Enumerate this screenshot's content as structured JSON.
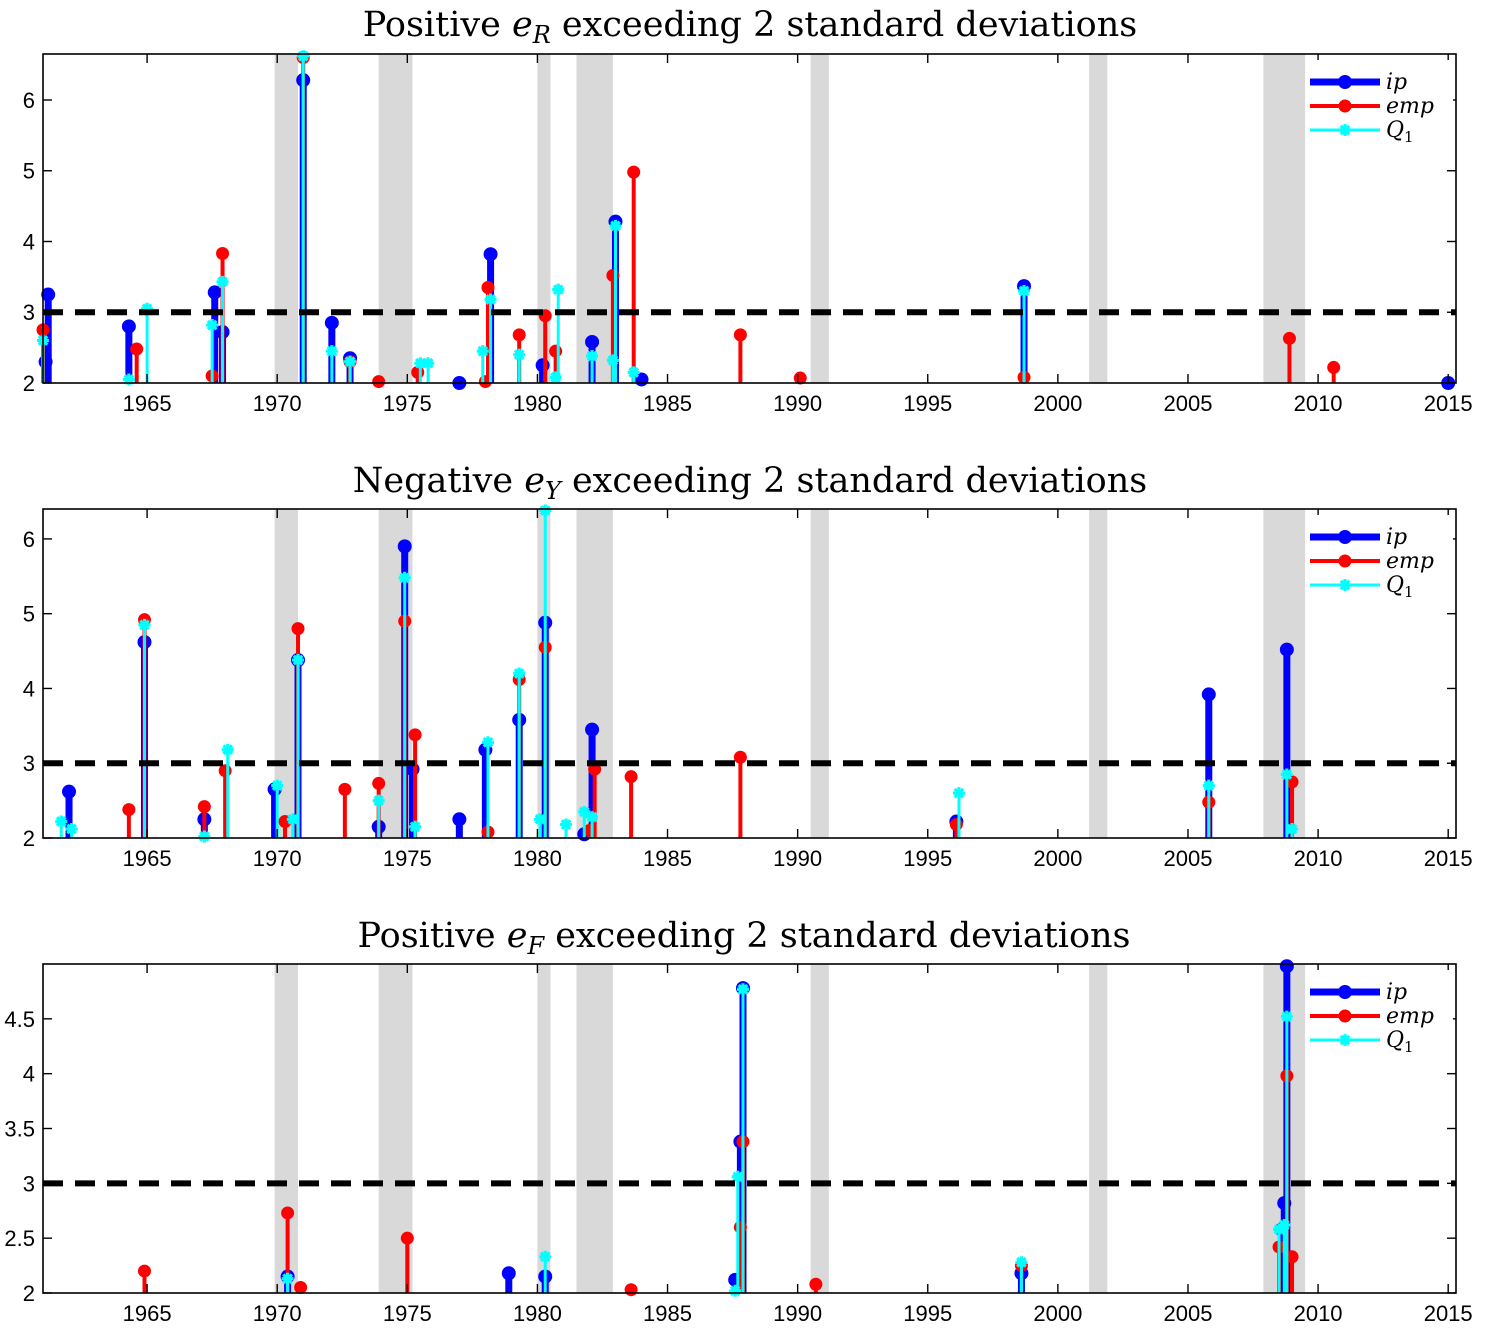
{
  "chart_data": [
    {
      "type": "stem",
      "title": "Positive e_R exceeding 2 standard deviations",
      "title_parts": {
        "prefix": "Positive ",
        "var": "e",
        "sub": "R",
        "suffix": " exceeding 2 standard deviations"
      },
      "xlim": [
        1961,
        2015.3
      ],
      "ylim": [
        2,
        6.65
      ],
      "xticks": [
        1965,
        1970,
        1975,
        1980,
        1985,
        1990,
        1995,
        2000,
        2005,
        2010,
        2015
      ],
      "xtick_labels": [
        "1965",
        "1970",
        "1975",
        "1980",
        "1985",
        "1990",
        "1995",
        "2000",
        "2005",
        "2010",
        "2015"
      ],
      "yticks": [
        2,
        3,
        4,
        5,
        6
      ],
      "ytick_labels": [
        "2",
        "3",
        "4",
        "5",
        "6"
      ],
      "threshold": 3,
      "grid": false,
      "legend_position": "top-right",
      "recession_bands": [
        [
          1969.9,
          1970.8
        ],
        [
          1973.9,
          1975.2
        ],
        [
          1980.0,
          1980.5
        ],
        [
          1981.5,
          1982.9
        ],
        [
          1990.5,
          1991.2
        ],
        [
          2001.2,
          2001.9
        ],
        [
          2007.9,
          2009.5
        ]
      ],
      "series": [
        {
          "name": "ip",
          "color": "#0000ff",
          "marker": "circle",
          "x": [
            1961.1,
            1961.2,
            1964.3,
            1967.6,
            1967.9,
            1971.0,
            1972.1,
            1972.8,
            1977.0,
            1978.2,
            1980.2,
            1982.1,
            1983.0,
            1984.0,
            1998.7,
            2015.0
          ],
          "y": [
            2.3,
            3.25,
            2.8,
            3.28,
            2.72,
            6.28,
            2.85,
            2.35,
            2.0,
            3.82,
            2.25,
            2.58,
            4.28,
            2.05,
            3.37,
            2.0
          ]
        },
        {
          "name": "emp",
          "color": "#ff0000",
          "marker": "circle",
          "x": [
            1961.0,
            1964.6,
            1967.5,
            1967.9,
            1971.0,
            1972.8,
            1973.9,
            1975.4,
            1978.0,
            1978.1,
            1979.3,
            1980.3,
            1980.7,
            1982.9,
            1983.7,
            1987.8,
            1990.1,
            1998.7,
            2008.9,
            2010.6
          ],
          "y": [
            2.75,
            2.48,
            2.1,
            3.83,
            6.6,
            2.3,
            2.02,
            2.15,
            2.02,
            3.35,
            2.68,
            2.95,
            2.45,
            3.52,
            4.98,
            2.68,
            2.07,
            2.08,
            2.63,
            2.22
          ]
        },
        {
          "name": "Q_1",
          "color": "#00ffff",
          "marker": "star",
          "x": [
            1961.0,
            1964.3,
            1965.0,
            1967.5,
            1967.9,
            1971.0,
            1972.1,
            1972.8,
            1975.5,
            1975.8,
            1977.9,
            1978.2,
            1979.3,
            1980.7,
            1980.8,
            1982.1,
            1982.9,
            1983.0,
            1983.7,
            1998.7
          ],
          "y": [
            2.6,
            2.05,
            3.05,
            2.82,
            3.43,
            6.62,
            2.45,
            2.3,
            2.28,
            2.28,
            2.45,
            3.18,
            2.4,
            2.08,
            3.32,
            2.38,
            2.32,
            4.22,
            2.15,
            3.3
          ]
        }
      ]
    },
    {
      "type": "stem",
      "title": "Negative e_Y exceeding 2 standard deviations",
      "title_parts": {
        "prefix": "Negative ",
        "var": "e",
        "sub": "Y",
        "suffix": " exceeding 2 standard deviations"
      },
      "xlim": [
        1961,
        2015.3
      ],
      "ylim": [
        2,
        6.4
      ],
      "xticks": [
        1965,
        1970,
        1975,
        1980,
        1985,
        1990,
        1995,
        2000,
        2005,
        2010,
        2015
      ],
      "xtick_labels": [
        "1965",
        "1970",
        "1975",
        "1980",
        "1985",
        "1990",
        "1995",
        "2000",
        "2005",
        "2010",
        "2015"
      ],
      "yticks": [
        2,
        3,
        4,
        5,
        6
      ],
      "ytick_labels": [
        "2",
        "3",
        "4",
        "5",
        "6"
      ],
      "threshold": 3,
      "grid": false,
      "legend_position": "top-right",
      "recession_bands": [
        [
          1969.9,
          1970.8
        ],
        [
          1973.9,
          1975.2
        ],
        [
          1980.0,
          1980.5
        ],
        [
          1981.5,
          1982.9
        ],
        [
          1990.5,
          1991.2
        ],
        [
          2001.2,
          2001.9
        ],
        [
          2007.9,
          2009.5
        ]
      ],
      "series": [
        {
          "name": "ip",
          "color": "#0000ff",
          "marker": "circle",
          "x": [
            1962.0,
            1964.9,
            1967.2,
            1969.9,
            1970.8,
            1973.9,
            1974.9,
            1975.2,
            1977.0,
            1978.0,
            1979.3,
            1980.3,
            1981.8,
            1982.1,
            1996.1,
            2005.8,
            2008.8
          ],
          "y": [
            2.62,
            4.62,
            2.25,
            2.65,
            4.38,
            2.15,
            5.9,
            2.92,
            2.25,
            3.18,
            3.58,
            4.88,
            2.05,
            3.45,
            2.22,
            3.92,
            4.52
          ]
        },
        {
          "name": "emp",
          "color": "#ff0000",
          "marker": "circle",
          "x": [
            1964.3,
            1964.9,
            1967.2,
            1968.0,
            1970.3,
            1970.8,
            1972.6,
            1973.9,
            1974.9,
            1975.3,
            1978.1,
            1979.3,
            1980.3,
            1982.0,
            1982.2,
            1983.6,
            1987.8,
            1996.1,
            2005.8,
            2009.0
          ],
          "y": [
            2.38,
            4.92,
            2.42,
            2.9,
            2.22,
            4.8,
            2.65,
            2.73,
            4.9,
            3.38,
            2.08,
            4.12,
            4.55,
            2.1,
            2.92,
            2.82,
            3.08,
            2.18,
            2.48,
            2.75
          ]
        },
        {
          "name": "Q_1",
          "color": "#00ffff",
          "marker": "star",
          "x": [
            1961.7,
            1962.1,
            1964.9,
            1967.2,
            1968.1,
            1970.0,
            1970.6,
            1970.8,
            1973.9,
            1974.9,
            1975.3,
            1978.1,
            1979.3,
            1980.1,
            1980.3,
            1981.1,
            1981.8,
            1982.1,
            1996.2,
            2005.8,
            2008.8,
            2009.0
          ],
          "y": [
            2.22,
            2.12,
            4.85,
            2.02,
            3.18,
            2.7,
            2.25,
            4.38,
            2.5,
            5.48,
            2.15,
            3.28,
            4.2,
            2.25,
            6.38,
            2.18,
            2.35,
            2.28,
            2.6,
            2.7,
            2.85,
            2.12
          ]
        }
      ]
    },
    {
      "type": "stem",
      "title": "Positive e_F exceeding 2 standard deviations",
      "title_parts": {
        "prefix": "Positive ",
        "var": "e",
        "sub": "F",
        "suffix": " exceeding 2 standard deviations"
      },
      "xlim": [
        1961,
        2015.3
      ],
      "ylim": [
        2,
        5.0
      ],
      "xticks": [
        1965,
        1970,
        1975,
        1980,
        1985,
        1990,
        1995,
        2000,
        2005,
        2010,
        2015
      ],
      "xtick_labels": [
        "1965",
        "1970",
        "1975",
        "1980",
        "1985",
        "1990",
        "1995",
        "2000",
        "2005",
        "2010",
        "2015"
      ],
      "yticks": [
        2,
        2.5,
        3,
        3.5,
        4,
        4.5
      ],
      "ytick_labels": [
        "2",
        "2.5",
        "3",
        "3.5",
        "4",
        "4.5"
      ],
      "threshold": 3,
      "grid": false,
      "legend_position": "top-right",
      "recession_bands": [
        [
          1969.9,
          1970.8
        ],
        [
          1973.9,
          1975.2
        ],
        [
          1980.0,
          1980.5
        ],
        [
          1981.5,
          1982.9
        ],
        [
          1990.5,
          1991.2
        ],
        [
          2001.2,
          2001.9
        ],
        [
          2007.9,
          2009.5
        ]
      ],
      "series": [
        {
          "name": "ip",
          "color": "#0000ff",
          "marker": "circle",
          "x": [
            1970.4,
            1978.9,
            1980.3,
            1987.6,
            1987.8,
            1987.9,
            1998.6,
            2008.6,
            2008.7,
            2008.8
          ],
          "y": [
            2.15,
            2.18,
            2.15,
            2.12,
            3.38,
            4.78,
            2.18,
            2.58,
            2.82,
            4.98
          ]
        },
        {
          "name": "emp",
          "color": "#ff0000",
          "marker": "circle",
          "x": [
            1964.9,
            1970.4,
            1970.9,
            1975.0,
            1983.6,
            1987.8,
            1987.9,
            1990.7,
            1998.6,
            2008.5,
            2008.8,
            2009.0
          ],
          "y": [
            2.2,
            2.73,
            2.05,
            2.5,
            2.03,
            2.6,
            3.38,
            2.08,
            2.25,
            2.42,
            3.98,
            2.33
          ]
        },
        {
          "name": "Q_1",
          "color": "#00ffff",
          "marker": "star",
          "x": [
            1970.4,
            1980.3,
            1987.6,
            1987.7,
            1987.9,
            1998.6,
            2008.5,
            2008.7,
            2008.8
          ],
          "y": [
            2.13,
            2.33,
            2.02,
            3.06,
            4.77,
            2.28,
            2.58,
            2.62,
            4.52
          ]
        }
      ]
    }
  ]
}
